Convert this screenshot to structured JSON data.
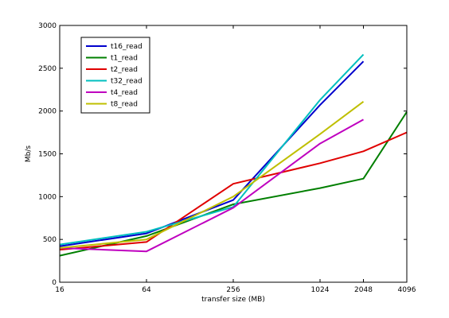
{
  "chart_data": {
    "type": "line",
    "title": "",
    "xlabel": "transfer size (MB)",
    "ylabel": "Mb/s",
    "x_scale": "log2",
    "xlim": [
      16,
      4096
    ],
    "ylim": [
      0,
      3000
    ],
    "x_ticks": [
      16,
      64,
      256,
      1024,
      2048,
      4096
    ],
    "y_ticks": [
      0,
      500,
      1000,
      1500,
      2000,
      2500,
      3000
    ],
    "grid": false,
    "legend_position": "top-left",
    "series": [
      {
        "name": "t16_read",
        "color": "#0000cc",
        "x": [
          16,
          64,
          256,
          1024,
          2048
        ],
        "y": [
          420,
          570,
          960,
          2070,
          2580
        ]
      },
      {
        "name": "t1_read",
        "color": "#007f00",
        "x": [
          16,
          64,
          256,
          1024,
          2048,
          4096
        ],
        "y": [
          310,
          540,
          910,
          1100,
          1210,
          1990
        ]
      },
      {
        "name": "t2_read",
        "color": "#e00000",
        "x": [
          16,
          64,
          256,
          1024,
          2048,
          4096
        ],
        "y": [
          380,
          470,
          1150,
          1390,
          1530,
          1750
        ]
      },
      {
        "name": "t32_read",
        "color": "#00bfbf",
        "x": [
          16,
          64,
          256,
          1024,
          2048
        ],
        "y": [
          440,
          590,
          880,
          2130,
          2660
        ]
      },
      {
        "name": "t4_read",
        "color": "#bf00bf",
        "x": [
          16,
          64,
          256,
          1024,
          2048
        ],
        "y": [
          400,
          360,
          870,
          1620,
          1900
        ]
      },
      {
        "name": "t8_read",
        "color": "#bfbf00",
        "x": [
          16,
          64,
          256,
          1024,
          2048
        ],
        "y": [
          400,
          500,
          1000,
          1730,
          2110
        ]
      }
    ]
  }
}
